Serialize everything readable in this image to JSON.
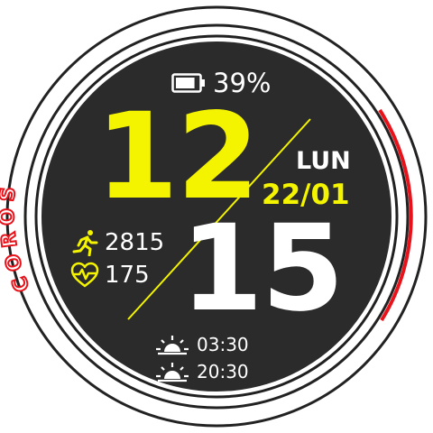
{
  "watch_face": {
    "brand": "COROS",
    "battery": {
      "percent_label": "39%",
      "icon": "battery-icon",
      "level_fraction": 0.39
    },
    "time": {
      "hour": "12",
      "minute": "15"
    },
    "date": {
      "weekday": "LUN",
      "day_month": "22/01"
    },
    "activity": {
      "steps": {
        "icon": "running-person-icon",
        "value": "2815"
      },
      "heart_rate": {
        "icon": "heart-pulse-icon",
        "value": "175"
      }
    },
    "sun": {
      "sunrise": {
        "icon": "sunrise-icon",
        "time": "03:30"
      },
      "sunset": {
        "icon": "sunset-icon",
        "time": "20:30"
      }
    }
  },
  "colors": {
    "dial_background": "#2b2b2b",
    "accent_yellow": "#f4f400",
    "brand_red": "#e8121a",
    "text_white": "#ffffff",
    "bezel_dark": "#202020",
    "bezel_light": "#dcdcdc"
  }
}
